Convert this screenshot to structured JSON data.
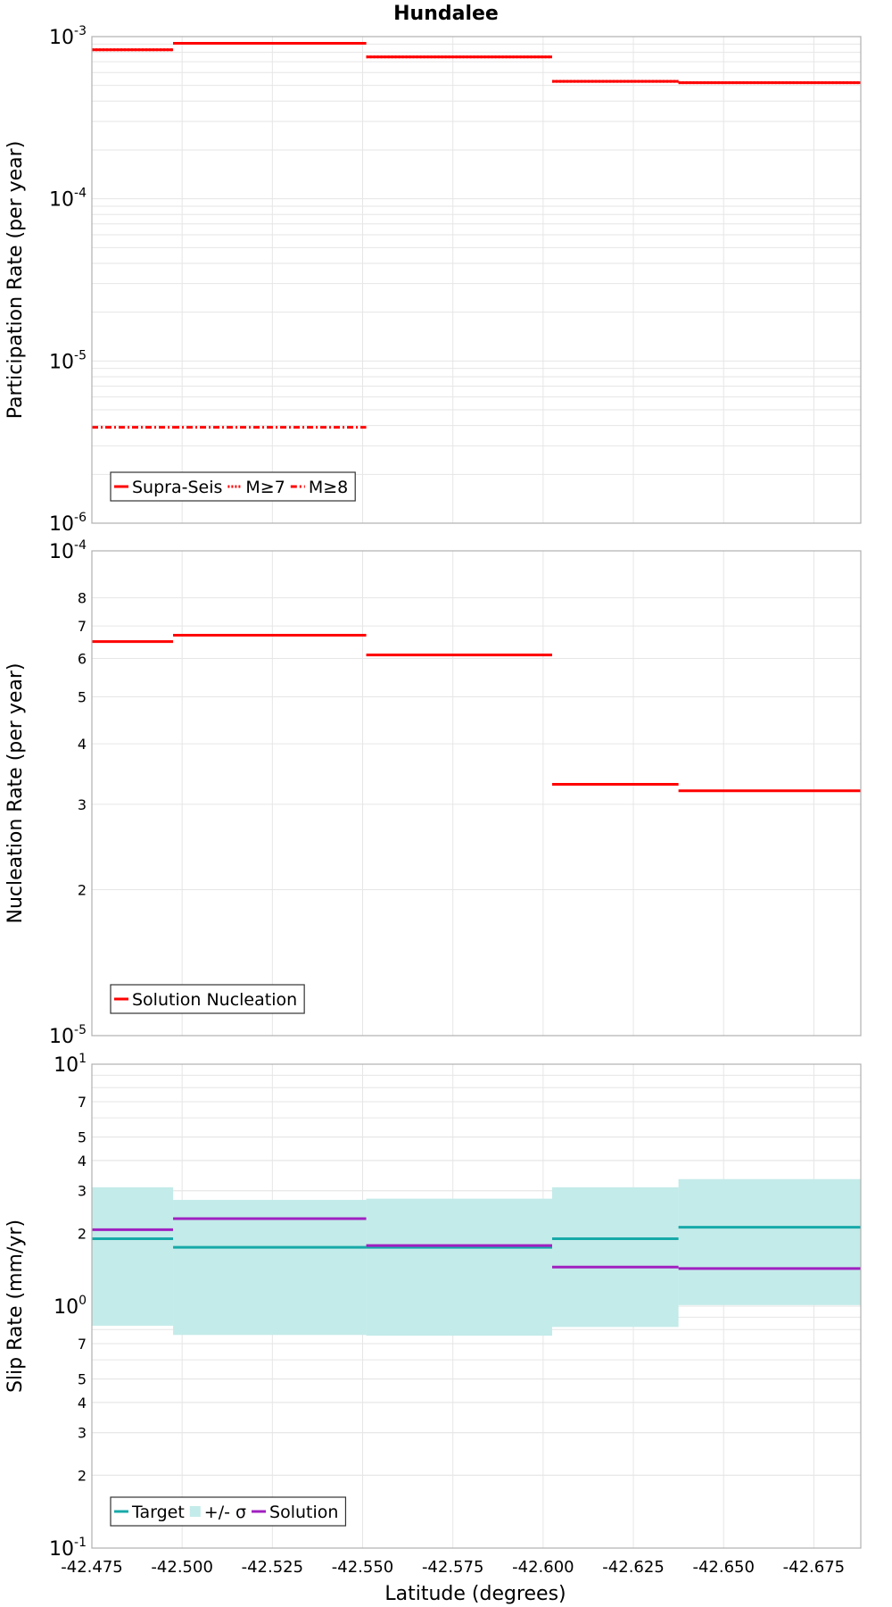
{
  "title": "Hundalee",
  "xlabel": "Latitude (degrees)",
  "x_ticks": [
    "-42.475",
    "-42.500",
    "-42.525",
    "-42.550",
    "-42.575",
    "-42.600",
    "-42.625",
    "-42.650",
    "-42.675"
  ],
  "x_tick_values": [
    -42.475,
    -42.5,
    -42.525,
    -42.55,
    -42.575,
    -42.6,
    -42.625,
    -42.65,
    -42.675
  ],
  "xlim": [
    -42.475,
    -42.688
  ],
  "colors": {
    "red": "#ff0000",
    "target": "#17a9a9",
    "band": "#c3ebe9",
    "solution": "#a020c0",
    "grid": "#e6e6e6",
    "frame": "#b0b0b0"
  },
  "chart_data": [
    {
      "type": "line",
      "ylabel": "Participation Rate (per year)",
      "yscale": "log",
      "ylim": [
        1e-06,
        0.001
      ],
      "y_ticks": [
        {
          "value": 0.001,
          "base": "10",
          "exp": "-3"
        },
        {
          "value": 0.0001,
          "base": "10",
          "exp": "-4"
        },
        {
          "value": 1e-05,
          "base": "10",
          "exp": "-5"
        },
        {
          "value": 1e-06,
          "base": "10",
          "exp": "-6"
        }
      ],
      "minor_ticks": true,
      "grid": true,
      "legend_position": "bottom-left",
      "series": [
        {
          "name": "Supra-Seis",
          "style": "solid",
          "color": "#ff0000",
          "segments": [
            {
              "x": [
                -42.475,
                -42.4975
              ],
              "y": 0.00083
            },
            {
              "x": [
                -42.4975,
                -42.551
              ],
              "y": 0.00091
            },
            {
              "x": [
                -42.551,
                -42.6025
              ],
              "y": 0.00075
            },
            {
              "x": [
                -42.6025,
                -42.6375
              ],
              "y": 0.00053
            },
            {
              "x": [
                -42.6375,
                -42.688
              ],
              "y": 0.00052
            }
          ]
        },
        {
          "name": "M≥7",
          "style": "dotted",
          "color": "#ff0000",
          "segments": [
            {
              "x": [
                -42.475,
                -42.4975
              ],
              "y": 0.00083
            },
            {
              "x": [
                -42.4975,
                -42.551
              ],
              "y": 0.00091
            },
            {
              "x": [
                -42.551,
                -42.6025
              ],
              "y": 0.00075
            },
            {
              "x": [
                -42.6025,
                -42.6375
              ],
              "y": 0.00053
            },
            {
              "x": [
                -42.6375,
                -42.688
              ],
              "y": 0.00052
            }
          ]
        },
        {
          "name": "M≥8",
          "style": "dashdot",
          "color": "#ff0000",
          "segments": [
            {
              "x": [
                -42.475,
                -42.4975
              ],
              "y": 3.9e-06
            },
            {
              "x": [
                -42.4975,
                -42.551
              ],
              "y": 3.9e-06
            }
          ]
        }
      ]
    },
    {
      "type": "line",
      "ylabel": "Nucleation Rate (per year)",
      "yscale": "log",
      "ylim": [
        1e-05,
        0.0001
      ],
      "y_ticks": [
        {
          "value": 0.0001,
          "base": "10",
          "exp": "-4"
        },
        {
          "value": 8e-05,
          "label": "8"
        },
        {
          "value": 7e-05,
          "label": "7"
        },
        {
          "value": 6e-05,
          "label": "6"
        },
        {
          "value": 5e-05,
          "label": "5"
        },
        {
          "value": 4e-05,
          "label": "4"
        },
        {
          "value": 3e-05,
          "label": "3"
        },
        {
          "value": 2e-05,
          "label": "2"
        },
        {
          "value": 1e-05,
          "base": "10",
          "exp": "-5"
        }
      ],
      "minor_ticks": false,
      "grid": true,
      "legend_position": "bottom-left",
      "series": [
        {
          "name": "Solution Nucleation",
          "style": "solid",
          "color": "#ff0000",
          "segments": [
            {
              "x": [
                -42.475,
                -42.4975
              ],
              "y": 6.5e-05
            },
            {
              "x": [
                -42.4975,
                -42.551
              ],
              "y": 6.7e-05
            },
            {
              "x": [
                -42.551,
                -42.6025
              ],
              "y": 6.1e-05
            },
            {
              "x": [
                -42.6025,
                -42.6375
              ],
              "y": 3.3e-05
            },
            {
              "x": [
                -42.6375,
                -42.688
              ],
              "y": 3.2e-05
            }
          ]
        }
      ]
    },
    {
      "type": "line",
      "ylabel": "Slip Rate (mm/yr)",
      "yscale": "log",
      "ylim": [
        0.1,
        10
      ],
      "y_ticks": [
        {
          "value": 10,
          "base": "10",
          "exp": "1"
        },
        {
          "value": 7,
          "label": "7"
        },
        {
          "value": 5,
          "label": "5"
        },
        {
          "value": 4,
          "label": "4"
        },
        {
          "value": 3,
          "label": "3"
        },
        {
          "value": 2,
          "label": "2"
        },
        {
          "value": 1,
          "base": "10",
          "exp": "0"
        },
        {
          "value": 0.7,
          "label": "7"
        },
        {
          "value": 0.5,
          "label": "5"
        },
        {
          "value": 0.4,
          "label": "4"
        },
        {
          "value": 0.3,
          "label": "3"
        },
        {
          "value": 0.2,
          "label": "2"
        },
        {
          "value": 0.1,
          "base": "10",
          "exp": "-1"
        }
      ],
      "minor_ticks": true,
      "grid": true,
      "legend_position": "bottom-left",
      "band": {
        "name": "+/- σ",
        "color": "#c3ebe9",
        "segments": [
          {
            "x": [
              -42.475,
              -42.4975
            ],
            "low": 0.83,
            "high": 3.1
          },
          {
            "x": [
              -42.4975,
              -42.551
            ],
            "low": 0.76,
            "high": 2.75
          },
          {
            "x": [
              -42.551,
              -42.6025
            ],
            "low": 0.755,
            "high": 2.78
          },
          {
            "x": [
              -42.6025,
              -42.6375
            ],
            "low": 0.82,
            "high": 3.1
          },
          {
            "x": [
              -42.6375,
              -42.688
            ],
            "low": 1.01,
            "high": 3.35
          }
        ]
      },
      "series": [
        {
          "name": "Target",
          "style": "solid",
          "color": "#17a9a9",
          "segments": [
            {
              "x": [
                -42.475,
                -42.4975
              ],
              "y": 1.9
            },
            {
              "x": [
                -42.4975,
                -42.551
              ],
              "y": 1.75
            },
            {
              "x": [
                -42.551,
                -42.6025
              ],
              "y": 1.75
            },
            {
              "x": [
                -42.6025,
                -42.6375
              ],
              "y": 1.9
            },
            {
              "x": [
                -42.6375,
                -42.688
              ],
              "y": 2.12
            }
          ]
        },
        {
          "name": "Solution",
          "style": "solid",
          "color": "#a020c0",
          "segments": [
            {
              "x": [
                -42.475,
                -42.4975
              ],
              "y": 2.07
            },
            {
              "x": [
                -42.4975,
                -42.551
              ],
              "y": 2.3
            },
            {
              "x": [
                -42.551,
                -42.6025
              ],
              "y": 1.78
            },
            {
              "x": [
                -42.6025,
                -42.6375
              ],
              "y": 1.45
            },
            {
              "x": [
                -42.6375,
                -42.688
              ],
              "y": 1.43
            }
          ]
        }
      ],
      "legend_order": [
        "Target",
        "+/- σ",
        "Solution"
      ]
    }
  ]
}
